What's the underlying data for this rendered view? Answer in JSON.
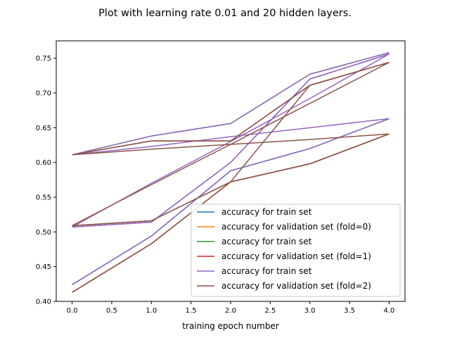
{
  "chart_data": {
    "type": "line",
    "title": "Plot with learning rate 0.01 and 20 hidden layers.",
    "xlabel": "training epoch number",
    "ylabel": "",
    "x": [
      0,
      1,
      2,
      3,
      4
    ],
    "xlim": [
      -0.2,
      4.2
    ],
    "ylim": [
      0.4,
      0.775
    ],
    "xticks": [
      "0.0",
      "0.5",
      "1.0",
      "1.5",
      "2.0",
      "2.5",
      "3.0",
      "3.5",
      "4.0"
    ],
    "yticks": [
      "0.40",
      "0.45",
      "0.50",
      "0.55",
      "0.60",
      "0.65",
      "0.70",
      "0.75"
    ],
    "grid": false,
    "legend_position": "lower-right",
    "series": [
      {
        "name": "accuracy for train set",
        "color": "#1f77b4",
        "values": [
          0.424,
          0.494,
          0.588,
          0.62,
          0.663
        ]
      },
      {
        "name": "accuracy for validation set (fold=0)",
        "color": "#ff7f0e",
        "values": [
          0.413,
          0.483,
          0.572,
          0.598,
          0.641
        ]
      },
      {
        "name": "accuracy for train set",
        "color": "#2ca02c",
        "values": [
          0.611,
          0.638,
          0.656,
          0.727,
          0.758
        ]
      },
      {
        "name": "accuracy for validation set (fold=1)",
        "color": "#d62728",
        "values": [
          0.611,
          0.631,
          0.631,
          0.711,
          0.744
        ]
      },
      {
        "name": "accuracy for train set",
        "color": "#9467bd",
        "values": [
          0.507,
          0.514,
          0.6,
          0.72,
          0.756
        ]
      },
      {
        "name": "accuracy for validation set (fold=2)",
        "color": "#8c564b",
        "values": [
          0.509,
          0.516,
          0.572,
          0.598,
          0.641
        ]
      }
    ],
    "overlay": [
      {
        "color": "#9467bd",
        "y": [
          [
            0.424,
            0.494,
            0.588,
            0.62,
            0.663
          ],
          [
            0.611,
            0.638,
            0.656,
            0.727,
            0.758
          ],
          [
            0.507,
            0.514,
            0.6,
            0.72,
            0.756
          ],
          [
            0.611,
            0.623,
            0.637,
            0.65,
            0.663
          ],
          [
            0.507,
            0.57,
            0.63,
            0.692,
            0.756
          ]
        ]
      },
      {
        "color": "#8c564b",
        "y": [
          [
            0.413,
            0.483,
            0.572,
            0.598,
            0.641
          ],
          [
            0.611,
            0.631,
            0.631,
            0.711,
            0.744
          ],
          [
            0.509,
            0.516,
            0.572,
            0.598,
            0.641
          ],
          [
            0.611,
            0.619,
            0.626,
            0.633,
            0.641
          ],
          [
            0.509,
            0.568,
            0.626,
            0.685,
            0.744
          ],
          [
            0.413,
            0.483,
            0.572,
            0.711,
            0.744
          ]
        ]
      }
    ]
  }
}
